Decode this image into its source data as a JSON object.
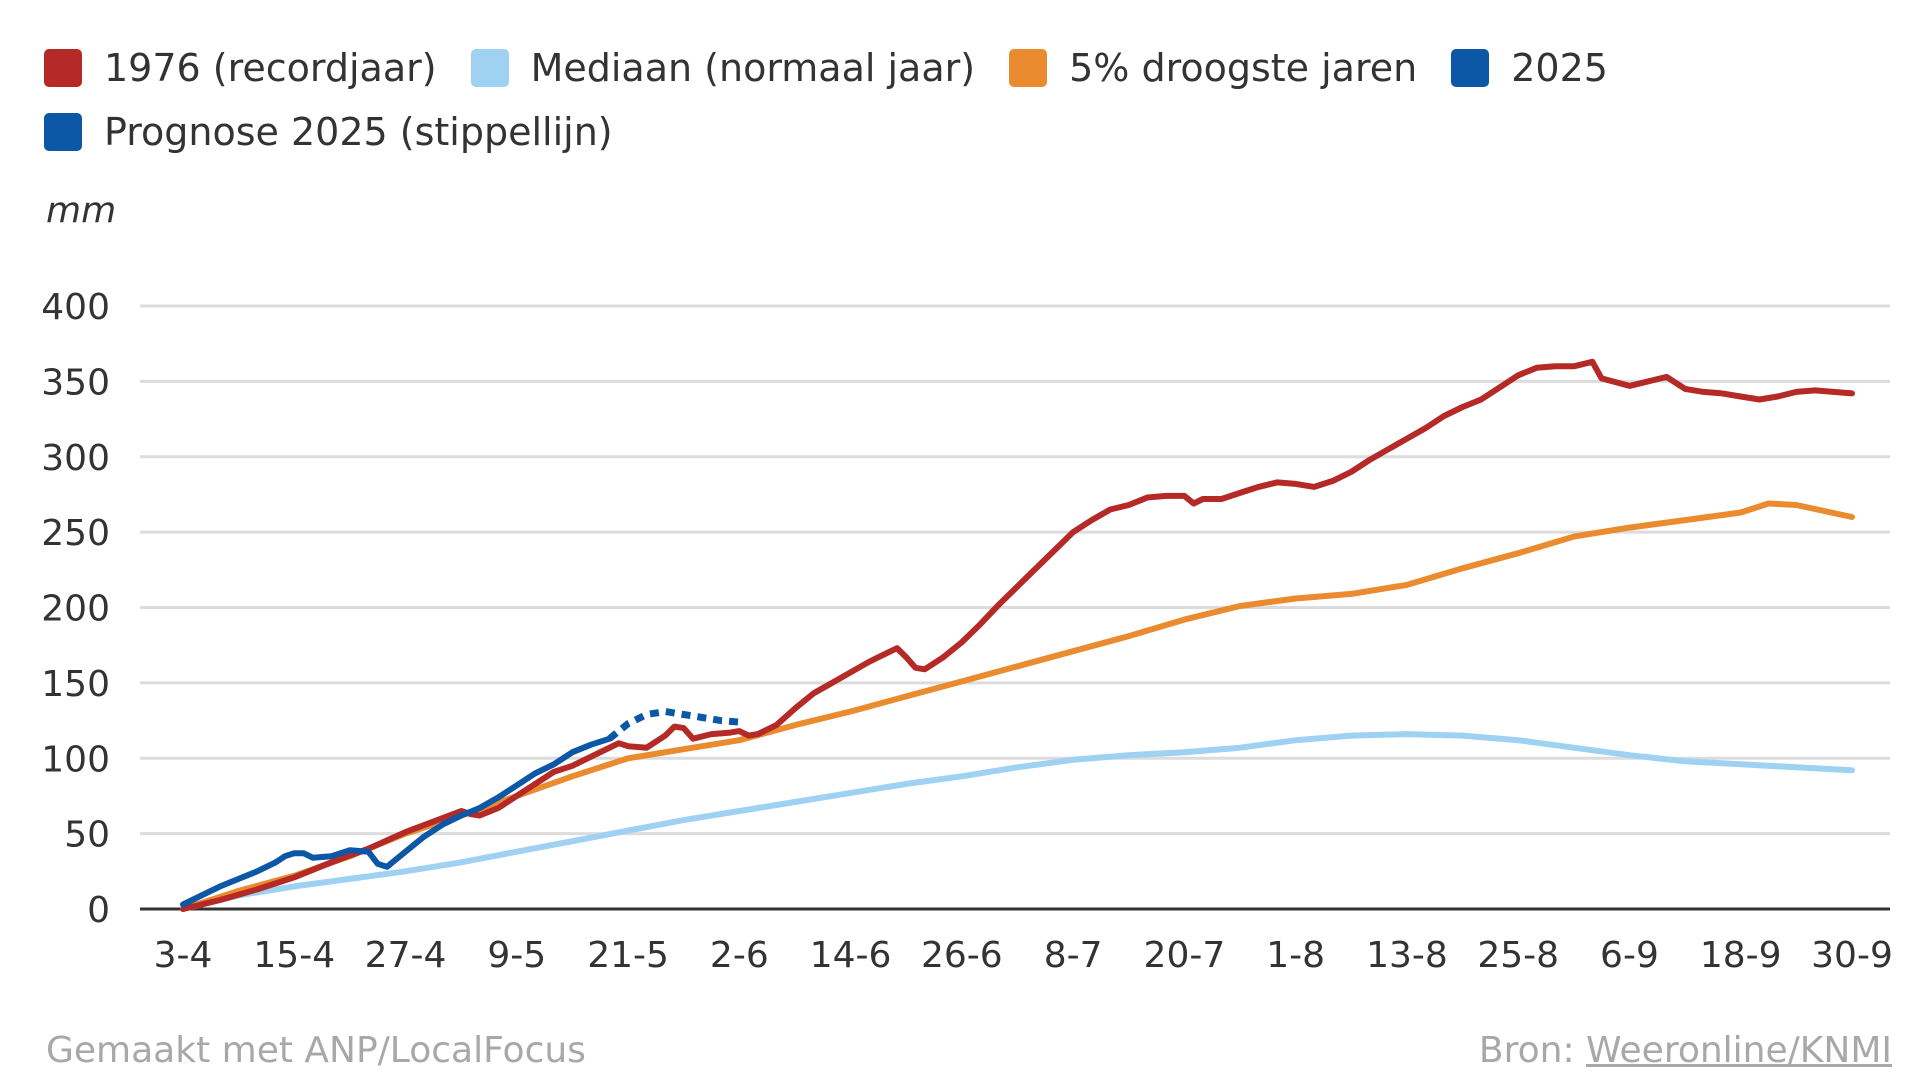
{
  "colors": {
    "s1976": "#b52a26",
    "median": "#9fd1f3",
    "dry5": "#ea8b2f",
    "y2025": "#0d57a7",
    "grid": "#dcdcdc",
    "axis": "#333333",
    "text": "#333333",
    "footer": "#a8a8a8"
  },
  "legend": {
    "rows": [
      [
        {
          "key": "s1976",
          "label": "1976 (recordjaar)"
        },
        {
          "key": "median",
          "label": "Mediaan (normaal jaar)"
        },
        {
          "key": "dry5",
          "label": "5% droogste jaren"
        },
        {
          "key": "y2025",
          "label": "2025"
        }
      ],
      [
        {
          "key": "y2025",
          "label": "Prognose 2025 (stippellijn)"
        }
      ]
    ]
  },
  "footer": {
    "left": "Gemaakt met ANP/LocalFocus",
    "right_prefix": "Bron: ",
    "right_link": "Weeronline/KNMI"
  },
  "chart_data": {
    "type": "line",
    "ylabel": "mm",
    "ylim": [
      0,
      400
    ],
    "yticks": [
      0,
      50,
      100,
      150,
      200,
      250,
      300,
      350,
      400
    ],
    "xlim": [
      0,
      180
    ],
    "xticks": [
      {
        "d": 0,
        "label": "3-4"
      },
      {
        "d": 12,
        "label": "15-4"
      },
      {
        "d": 24,
        "label": "27-4"
      },
      {
        "d": 36,
        "label": "9-5"
      },
      {
        "d": 48,
        "label": "21-5"
      },
      {
        "d": 60,
        "label": "2-6"
      },
      {
        "d": 72,
        "label": "14-6"
      },
      {
        "d": 84,
        "label": "26-6"
      },
      {
        "d": 96,
        "label": "8-7"
      },
      {
        "d": 108,
        "label": "20-7"
      },
      {
        "d": 120,
        "label": "1-8"
      },
      {
        "d": 132,
        "label": "13-8"
      },
      {
        "d": 144,
        "label": "25-8"
      },
      {
        "d": 156,
        "label": "6-9"
      },
      {
        "d": 168,
        "label": "18-9"
      },
      {
        "d": 180,
        "label": "30-9"
      }
    ],
    "grid": true,
    "series": [
      {
        "key": "median",
        "name": "Mediaan (normaal jaar)",
        "dashed": false,
        "points": [
          [
            0,
            0
          ],
          [
            6,
            9
          ],
          [
            12,
            15
          ],
          [
            18,
            20
          ],
          [
            24,
            25
          ],
          [
            30,
            31
          ],
          [
            36,
            38
          ],
          [
            42,
            45
          ],
          [
            48,
            52
          ],
          [
            54,
            59
          ],
          [
            60,
            65
          ],
          [
            66,
            71
          ],
          [
            72,
            77
          ],
          [
            78,
            83
          ],
          [
            84,
            88
          ],
          [
            90,
            94
          ],
          [
            96,
            99
          ],
          [
            102,
            102
          ],
          [
            108,
            104
          ],
          [
            114,
            107
          ],
          [
            120,
            112
          ],
          [
            126,
            115
          ],
          [
            132,
            116
          ],
          [
            138,
            115
          ],
          [
            144,
            112
          ],
          [
            150,
            107
          ],
          [
            156,
            102
          ],
          [
            162,
            98
          ],
          [
            168,
            96
          ],
          [
            174,
            94
          ],
          [
            180,
            92
          ]
        ]
      },
      {
        "key": "dry5",
        "name": "5% droogste jaren",
        "dashed": false,
        "points": [
          [
            0,
            0
          ],
          [
            6,
            12
          ],
          [
            12,
            22
          ],
          [
            18,
            35
          ],
          [
            24,
            50
          ],
          [
            30,
            62
          ],
          [
            36,
            75
          ],
          [
            42,
            88
          ],
          [
            48,
            100
          ],
          [
            54,
            106
          ],
          [
            60,
            112
          ],
          [
            66,
            122
          ],
          [
            72,
            131
          ],
          [
            78,
            141
          ],
          [
            84,
            151
          ],
          [
            90,
            161
          ],
          [
            96,
            171
          ],
          [
            102,
            181
          ],
          [
            108,
            192
          ],
          [
            114,
            201
          ],
          [
            120,
            206
          ],
          [
            126,
            209
          ],
          [
            132,
            215
          ],
          [
            138,
            226
          ],
          [
            144,
            236
          ],
          [
            150,
            247
          ],
          [
            156,
            253
          ],
          [
            162,
            258
          ],
          [
            168,
            263
          ],
          [
            171,
            269
          ],
          [
            174,
            268
          ],
          [
            177,
            264
          ],
          [
            180,
            260
          ]
        ]
      },
      {
        "key": "s1976",
        "name": "1976 (recordjaar)",
        "dashed": false,
        "points": [
          [
            0,
            0
          ],
          [
            4,
            6
          ],
          [
            8,
            13
          ],
          [
            12,
            21
          ],
          [
            16,
            31
          ],
          [
            20,
            40
          ],
          [
            24,
            51
          ],
          [
            27,
            58
          ],
          [
            30,
            65
          ],
          [
            31,
            63
          ],
          [
            32,
            62
          ],
          [
            34,
            67
          ],
          [
            36,
            75
          ],
          [
            38,
            83
          ],
          [
            40,
            91
          ],
          [
            42,
            95
          ],
          [
            44,
            101
          ],
          [
            46,
            107
          ],
          [
            47,
            110
          ],
          [
            48,
            108
          ],
          [
            50,
            107
          ],
          [
            52,
            115
          ],
          [
            53,
            121
          ],
          [
            54,
            120
          ],
          [
            55,
            113
          ],
          [
            57,
            116
          ],
          [
            59,
            117
          ],
          [
            60,
            118
          ],
          [
            61,
            115
          ],
          [
            62,
            116
          ],
          [
            64,
            122
          ],
          [
            66,
            133
          ],
          [
            68,
            143
          ],
          [
            70,
            150
          ],
          [
            72,
            157
          ],
          [
            74,
            164
          ],
          [
            75,
            167
          ],
          [
            77,
            173
          ],
          [
            78,
            167
          ],
          [
            79,
            160
          ],
          [
            80,
            159
          ],
          [
            82,
            167
          ],
          [
            84,
            177
          ],
          [
            86,
            189
          ],
          [
            88,
            202
          ],
          [
            90,
            214
          ],
          [
            92,
            226
          ],
          [
            94,
            238
          ],
          [
            96,
            250
          ],
          [
            98,
            258
          ],
          [
            100,
            265
          ],
          [
            102,
            268
          ],
          [
            104,
            273
          ],
          [
            106,
            274
          ],
          [
            108,
            274
          ],
          [
            109,
            269
          ],
          [
            110,
            272
          ],
          [
            112,
            272
          ],
          [
            114,
            276
          ],
          [
            116,
            280
          ],
          [
            118,
            283
          ],
          [
            120,
            282
          ],
          [
            122,
            280
          ],
          [
            124,
            284
          ],
          [
            126,
            290
          ],
          [
            128,
            298
          ],
          [
            130,
            305
          ],
          [
            132,
            312
          ],
          [
            134,
            319
          ],
          [
            136,
            327
          ],
          [
            138,
            333
          ],
          [
            140,
            338
          ],
          [
            142,
            346
          ],
          [
            144,
            354
          ],
          [
            146,
            359
          ],
          [
            148,
            360
          ],
          [
            150,
            360
          ],
          [
            152,
            363
          ],
          [
            153,
            352
          ],
          [
            156,
            347
          ],
          [
            158,
            350
          ],
          [
            160,
            353
          ],
          [
            162,
            345
          ],
          [
            164,
            343
          ],
          [
            166,
            342
          ],
          [
            168,
            340
          ],
          [
            170,
            338
          ],
          [
            172,
            340
          ],
          [
            174,
            343
          ],
          [
            176,
            344
          ],
          [
            178,
            343
          ],
          [
            180,
            342
          ]
        ]
      },
      {
        "key": "y2025",
        "name": "2025",
        "dashed": false,
        "points": [
          [
            0,
            3
          ],
          [
            2,
            9
          ],
          [
            4,
            15
          ],
          [
            6,
            20
          ],
          [
            8,
            25
          ],
          [
            10,
            31
          ],
          [
            11,
            35
          ],
          [
            12,
            37
          ],
          [
            13,
            37
          ],
          [
            14,
            34
          ],
          [
            16,
            35
          ],
          [
            18,
            39
          ],
          [
            20,
            38
          ],
          [
            21,
            30
          ],
          [
            22,
            28
          ],
          [
            24,
            38
          ],
          [
            26,
            48
          ],
          [
            28,
            56
          ],
          [
            30,
            62
          ],
          [
            32,
            67
          ],
          [
            34,
            74
          ],
          [
            36,
            82
          ],
          [
            38,
            90
          ],
          [
            40,
            96
          ],
          [
            42,
            104
          ],
          [
            44,
            109
          ],
          [
            46,
            113
          ]
        ]
      },
      {
        "key": "y2025",
        "name": "Prognose 2025 (stippellijn)",
        "dashed": true,
        "points": [
          [
            46,
            113
          ],
          [
            48,
            123
          ],
          [
            50,
            129
          ],
          [
            52,
            131
          ],
          [
            54,
            129
          ],
          [
            56,
            127
          ],
          [
            58,
            125
          ],
          [
            60,
            124
          ]
        ]
      }
    ]
  }
}
